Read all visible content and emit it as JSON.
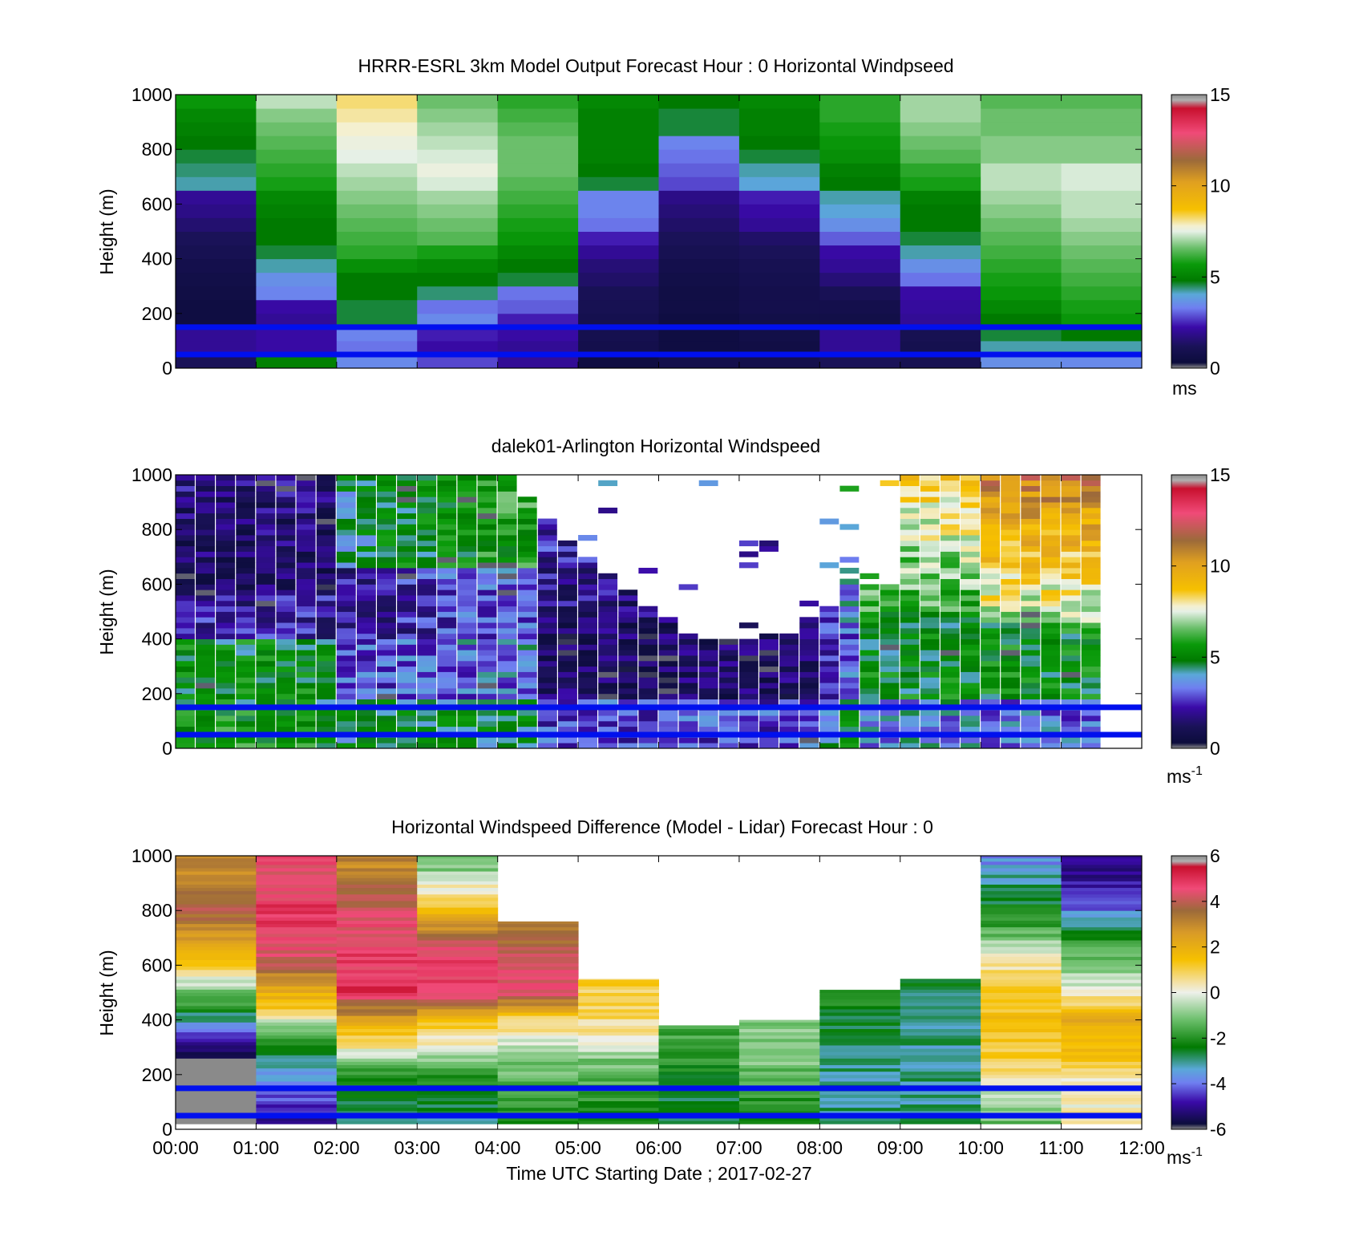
{
  "chart_data": [
    {
      "type": "heatmap",
      "title": "HRRR-ESRL 3km Model Output   Forecast Hour : 0 Horizontal Windpseed",
      "ylabel": "Height (m)",
      "ylim": [
        0,
        1000
      ],
      "yticks": [
        "0",
        "200",
        "400",
        "600",
        "800",
        "1000"
      ],
      "xlim": [
        "00:00",
        "12:00"
      ],
      "colorbar": {
        "min": 0,
        "max": 15,
        "ticks": [
          "0",
          "5",
          "10",
          "15"
        ],
        "unit_label": "ms",
        "unit_exponent": ""
      },
      "reference_lines_m": [
        50,
        150
      ],
      "grid": "off",
      "time_step_hours": 1,
      "height_step_m": 50,
      "values_note": "columns = hourly model profiles 00:00-11:00, rows = heights 0-1000 m (approximate)",
      "values": [
        [
          1.2,
          5,
          3.5,
          2.8,
          2.0,
          0.5,
          0.8,
          0.8,
          1.2,
          1.0,
          3.6,
          3.5
        ],
        [
          2.0,
          2.2,
          3.2,
          2.2,
          2.0,
          0.8,
          0.5,
          0.6,
          2.0,
          0.9,
          4.2,
          4.2
        ],
        [
          2.0,
          2.2,
          3.4,
          2.4,
          2.2,
          0.9,
          0.5,
          0.7,
          2.0,
          1.0,
          4.6,
          4.8
        ],
        [
          0.5,
          2.0,
          4.6,
          3.5,
          2.4,
          0.9,
          0.5,
          0.7,
          0.7,
          2.0,
          4.8,
          5.6
        ],
        [
          0.5,
          2.2,
          4.6,
          3.2,
          3.0,
          1.0,
          0.6,
          0.8,
          0.8,
          2.1,
          5.2,
          5.8
        ],
        [
          0.6,
          3.4,
          4.8,
          4.4,
          3.2,
          1.1,
          0.6,
          0.8,
          1.1,
          2.2,
          5.6,
          6.0
        ],
        [
          0.7,
          3.6,
          4.8,
          4.8,
          4.6,
          1.4,
          0.7,
          0.9,
          1.6,
          3.2,
          5.8,
          6.2
        ],
        [
          0.8,
          4.2,
          5.4,
          5.2,
          4.8,
          1.6,
          0.8,
          1.0,
          2.0,
          3.6,
          6.0,
          6.4
        ],
        [
          1.0,
          4.6,
          6.0,
          5.8,
          5.2,
          2.0,
          1.0,
          1.2,
          2.2,
          4.2,
          6.2,
          6.6
        ],
        [
          1.2,
          4.8,
          6.2,
          6.4,
          5.6,
          2.4,
          1.2,
          1.4,
          3.0,
          4.6,
          6.4,
          6.8
        ],
        [
          1.5,
          4.8,
          6.4,
          6.6,
          5.8,
          3.2,
          1.4,
          2.0,
          3.6,
          4.8,
          6.6,
          7.0
        ],
        [
          1.8,
          5.0,
          6.6,
          6.8,
          6.0,
          3.4,
          1.6,
          2.2,
          4.0,
          4.8,
          6.8,
          7.2
        ],
        [
          2.0,
          5.2,
          6.8,
          7.0,
          6.2,
          3.4,
          1.8,
          2.4,
          4.2,
          5.0,
          7.0,
          7.2
        ],
        [
          4.2,
          5.8,
          7.0,
          7.4,
          6.4,
          4.6,
          2.8,
          4.0,
          4.8,
          5.8,
          7.2,
          7.4
        ],
        [
          4.4,
          6.0,
          7.2,
          7.6,
          6.6,
          4.8,
          3.0,
          4.2,
          5.0,
          6.0,
          7.2,
          7.4
        ],
        [
          4.6,
          6.2,
          7.5,
          7.4,
          6.6,
          5.0,
          3.2,
          4.6,
          5.4,
          6.4,
          6.8,
          6.8
        ],
        [
          4.8,
          6.4,
          7.6,
          7.2,
          6.6,
          5.0,
          3.4,
          4.8,
          5.6,
          6.6,
          6.8,
          6.8
        ],
        [
          5.0,
          6.6,
          7.8,
          7.0,
          6.4,
          5.0,
          4.6,
          5.0,
          5.8,
          6.8,
          6.6,
          6.6
        ],
        [
          5.2,
          6.8,
          8.0,
          6.8,
          6.2,
          5.0,
          4.6,
          5.0,
          6.0,
          7.0,
          6.6,
          6.6
        ],
        [
          5.6,
          7.2,
          8.2,
          6.6,
          6.0,
          5.2,
          4.8,
          5.2,
          6.0,
          7.0,
          6.4,
          6.4
        ],
        [
          5.8,
          7.2,
          8.2,
          6.6,
          6.0,
          5.4,
          4.8,
          5.4,
          6.2,
          7.0,
          6.4,
          6.4
        ]
      ]
    },
    {
      "type": "heatmap",
      "title": "dalek01-Arlington  Horizontal Windspeed",
      "ylabel": "Height (m)",
      "ylim": [
        0,
        1000
      ],
      "yticks": [
        "0",
        "200",
        "400",
        "600",
        "800",
        "1000"
      ],
      "xlim": [
        "00:00",
        "12:00"
      ],
      "colorbar": {
        "min": 0,
        "max": 15,
        "ticks": [
          "0",
          "5",
          "10",
          "15"
        ],
        "unit_label": "ms",
        "unit_exponent": "-1"
      },
      "reference_lines_m": [
        50,
        150
      ],
      "grid": "off",
      "time_step_hours": 0.25,
      "height_step_m": 20,
      "values_note": "lidar profiles every 15 min, 48 columns x 50 height bins; null = no data (approximate, reconstructed)"
    },
    {
      "type": "heatmap",
      "title": "Horizontal Windspeed Difference (Model - Lidar) Forecast Hour : 0",
      "ylabel": "Height (m)",
      "xlabel": "Time UTC  Starting Date ; 2017-02-27",
      "ylim": [
        0,
        1000
      ],
      "yticks": [
        "0",
        "200",
        "400",
        "600",
        "800",
        "1000"
      ],
      "xticks": [
        "00:00",
        "01:00",
        "02:00",
        "03:00",
        "04:00",
        "05:00",
        "06:00",
        "07:00",
        "08:00",
        "09:00",
        "10:00",
        "11:00",
        "12:00"
      ],
      "colorbar": {
        "min": -6,
        "max": 6,
        "ticks": [
          "-6",
          "-4",
          "-2",
          "0",
          "2",
          "4",
          "6"
        ],
        "unit_label": "ms",
        "unit_exponent": "-1"
      },
      "reference_lines_m": [
        50,
        150
      ],
      "grid": "off",
      "time_step_hours": 1,
      "top_of_valid_data_m": [
        1000,
        1000,
        1000,
        1000,
        760,
        550,
        380,
        400,
        510,
        550,
        1000,
        1000
      ],
      "values_note": "hourly difference profiles; approximate key levels (m: value) per hour",
      "profiles": [
        [
          [
            0,
            -6.5
          ],
          [
            240,
            -6.5
          ],
          [
            300,
            -5
          ],
          [
            400,
            -3
          ],
          [
            500,
            -1
          ],
          [
            600,
            1.5
          ],
          [
            700,
            2.5
          ],
          [
            800,
            4
          ],
          [
            950,
            3
          ]
        ],
        [
          [
            0,
            -5
          ],
          [
            150,
            -4
          ],
          [
            250,
            -3
          ],
          [
            350,
            -1.5
          ],
          [
            420,
            1
          ],
          [
            500,
            2
          ],
          [
            600,
            4
          ],
          [
            750,
            5
          ],
          [
            900,
            4.5
          ]
        ],
        [
          [
            0,
            -3
          ],
          [
            200,
            -2
          ],
          [
            300,
            0.5
          ],
          [
            400,
            2.5
          ],
          [
            500,
            5
          ],
          [
            700,
            4.5
          ],
          [
            850,
            4
          ],
          [
            950,
            3
          ]
        ],
        [
          [
            0,
            -3
          ],
          [
            200,
            -2
          ],
          [
            300,
            0
          ],
          [
            400,
            1.5
          ],
          [
            500,
            5
          ],
          [
            650,
            4.5
          ],
          [
            800,
            1.5
          ],
          [
            950,
            -1
          ]
        ],
        [
          [
            0,
            -2.5
          ],
          [
            250,
            -1
          ],
          [
            400,
            1
          ],
          [
            500,
            4.5
          ],
          [
            650,
            4
          ],
          [
            760,
            3
          ]
        ],
        [
          [
            0,
            -2.5
          ],
          [
            250,
            -1
          ],
          [
            350,
            0.5
          ],
          [
            450,
            1
          ],
          [
            550,
            1
          ]
        ],
        [
          [
            0,
            -3
          ],
          [
            250,
            -2
          ],
          [
            380,
            -1.5
          ]
        ],
        [
          [
            0,
            -2.5
          ],
          [
            250,
            -1
          ],
          [
            400,
            -1
          ]
        ],
        [
          [
            0,
            -3
          ],
          [
            250,
            -3
          ],
          [
            400,
            -2.5
          ],
          [
            510,
            -2
          ]
        ],
        [
          [
            0,
            -3
          ],
          [
            250,
            -3
          ],
          [
            400,
            -3
          ],
          [
            550,
            -2.5
          ]
        ],
        [
          [
            0,
            -1.5
          ],
          [
            150,
            0
          ],
          [
            250,
            1
          ],
          [
            400,
            1.5
          ],
          [
            600,
            0.5
          ],
          [
            750,
            -2
          ],
          [
            900,
            -3
          ],
          [
            1000,
            -4
          ]
        ],
        [
          [
            0,
            0.5
          ],
          [
            150,
            0
          ],
          [
            250,
            1.5
          ],
          [
            400,
            2
          ],
          [
            500,
            0
          ],
          [
            600,
            -1
          ],
          [
            700,
            -2
          ],
          [
            800,
            -4
          ],
          [
            900,
            -5
          ],
          [
            1000,
            -5
          ]
        ]
      ]
    }
  ]
}
